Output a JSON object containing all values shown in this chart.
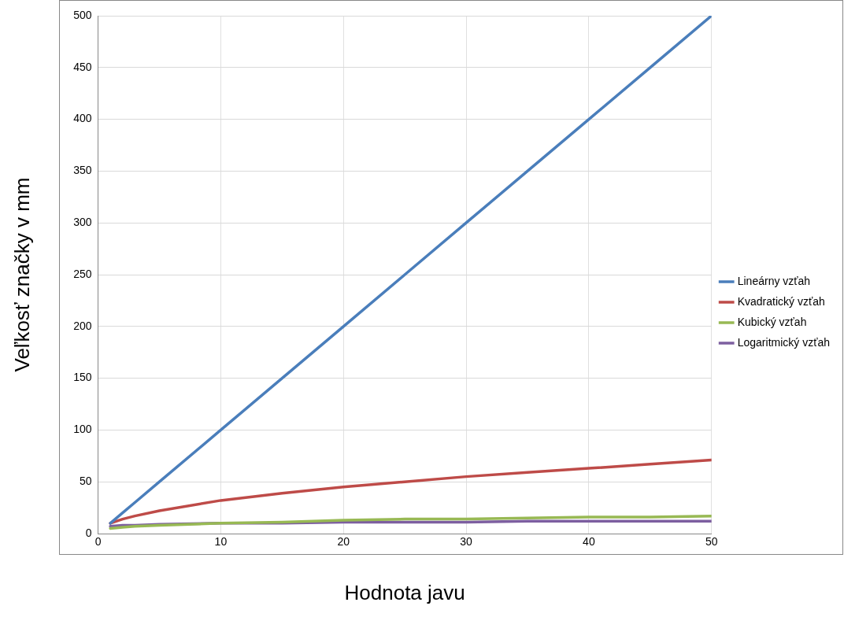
{
  "chart_data": {
    "type": "line",
    "xlabel": "Hodnota javu",
    "ylabel": "Veľkosť značky v mm",
    "x": [
      1,
      2,
      3,
      5,
      10,
      15,
      20,
      25,
      30,
      35,
      40,
      45,
      50
    ],
    "series": [
      {
        "name": "Lineárny vzťah",
        "color": "#4a7ebb",
        "values": [
          10,
          20,
          30,
          50,
          100,
          150,
          200,
          250,
          300,
          350,
          400,
          450,
          500
        ]
      },
      {
        "name": "Kvadratický vzťah",
        "color": "#be4b48",
        "values": [
          10,
          14,
          17,
          22,
          32,
          39,
          45,
          50,
          55,
          59,
          63,
          67,
          71
        ]
      },
      {
        "name": "Kubický vzťah",
        "color": "#98b954",
        "values": [
          5,
          6,
          7,
          8,
          10,
          11,
          13,
          14,
          14,
          15,
          16,
          16,
          17
        ]
      },
      {
        "name": "Logaritmický vzťah",
        "color": "#7d5fa0",
        "values": [
          7,
          8,
          8,
          9,
          10,
          10,
          11,
          11,
          11,
          12,
          12,
          12,
          12
        ]
      }
    ],
    "xlim": [
      0,
      50
    ],
    "xticks": [
      0,
      10,
      20,
      30,
      40,
      50
    ],
    "ylim": [
      0,
      500
    ],
    "yticks": [
      0,
      50,
      100,
      150,
      200,
      250,
      300,
      350,
      400,
      450,
      500
    ],
    "grid": true,
    "legend": "right",
    "marker": "none",
    "line_style": "solid"
  }
}
